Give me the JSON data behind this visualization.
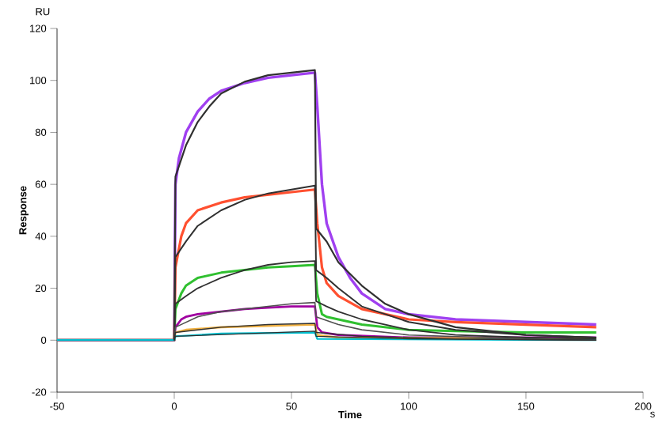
{
  "chart_data": {
    "type": "line",
    "xlabel": "Time",
    "ylabel": "Response",
    "annotations": [
      "RU",
      "s"
    ],
    "xlim": [
      -50,
      200
    ],
    "ylim": [
      -20,
      120
    ],
    "xticks": [
      -50,
      0,
      50,
      100,
      150,
      200
    ],
    "yticks": [
      -20,
      0,
      20,
      40,
      60,
      80,
      100,
      120
    ],
    "grid": false,
    "marker": "none",
    "line_style": "solid",
    "series": [
      {
        "color": "#a040f0",
        "x": [
          -50,
          0,
          0.5,
          2,
          5,
          10,
          15,
          20,
          30,
          40,
          50,
          60,
          61,
          63,
          65,
          70,
          75,
          80,
          90,
          100,
          120,
          150,
          180
        ],
        "values": [
          0,
          0,
          60,
          70,
          80,
          88,
          93,
          96,
          99,
          101,
          102,
          103,
          90,
          60,
          45,
          32,
          24,
          18,
          12,
          10,
          8,
          7,
          6
        ]
      },
      {
        "color": "#ff5030",
        "x": [
          -50,
          0,
          0.5,
          3,
          5,
          10,
          20,
          30,
          40,
          50,
          60,
          61,
          63,
          65,
          70,
          80,
          90,
          100,
          120,
          150,
          180
        ],
        "values": [
          0,
          0,
          28,
          40,
          45,
          50,
          53,
          55,
          56,
          57,
          58,
          45,
          28,
          22,
          17,
          12,
          10,
          8,
          7,
          6,
          5
        ]
      },
      {
        "color": "#30c030",
        "x": [
          -50,
          0,
          0.5,
          3,
          5,
          10,
          20,
          30,
          40,
          50,
          60,
          61,
          63,
          65,
          70,
          80,
          100,
          120,
          150,
          180
        ],
        "values": [
          0,
          0,
          12,
          18,
          21,
          24,
          26,
          27,
          28,
          28.5,
          29,
          18,
          10,
          9,
          8,
          6,
          4,
          3.5,
          3,
          3
        ]
      },
      {
        "color": "#a000a0",
        "x": [
          -50,
          0,
          0.5,
          3,
          5,
          10,
          20,
          30,
          40,
          50,
          60,
          61,
          63,
          70,
          100,
          150,
          180
        ],
        "values": [
          0,
          0,
          5,
          8,
          9,
          10,
          11,
          12,
          12.5,
          13,
          13,
          5,
          3,
          2,
          1,
          1,
          1
        ]
      },
      {
        "color": "#f0b040",
        "x": [
          -50,
          0,
          0.5,
          5,
          20,
          40,
          60,
          61,
          70,
          180
        ],
        "values": [
          0,
          0,
          3,
          4,
          5,
          5.5,
          6,
          2,
          1,
          0.5
        ]
      },
      {
        "color": "#00c0d0",
        "x": [
          -50,
          0,
          0.5,
          20,
          60,
          61,
          180
        ],
        "values": [
          0,
          0,
          1.5,
          2.5,
          3,
          0.5,
          0
        ]
      },
      {
        "color": "#303030",
        "x": [
          0,
          0.5,
          5,
          10,
          15,
          20,
          30,
          40,
          50,
          60,
          60.5,
          65,
          70,
          80,
          90,
          100,
          120,
          150,
          180
        ],
        "values": [
          0,
          63,
          75,
          84,
          90,
          95,
          99.5,
          102,
          103,
          104,
          43,
          38,
          30,
          21,
          14,
          10,
          5,
          2,
          1
        ]
      },
      {
        "color": "#303030",
        "x": [
          0,
          0.5,
          5,
          10,
          20,
          30,
          40,
          50,
          60,
          60.5,
          65,
          70,
          80,
          100,
          120,
          150,
          180
        ],
        "values": [
          0,
          32,
          38,
          44,
          50,
          54,
          56.5,
          58,
          59.5,
          27,
          24,
          20,
          13,
          7,
          4,
          2,
          1
        ]
      },
      {
        "color": "#303030",
        "x": [
          0,
          0.5,
          5,
          10,
          20,
          30,
          40,
          50,
          60,
          60.5,
          65,
          70,
          80,
          100,
          120,
          150,
          180
        ],
        "values": [
          0,
          14,
          17,
          20,
          24,
          27,
          29,
          30,
          30.5,
          15,
          13,
          11,
          8,
          4,
          2,
          1,
          0.5
        ]
      },
      {
        "color": "#505050",
        "x": [
          0,
          0.5,
          10,
          20,
          30,
          40,
          50,
          60,
          60.5,
          70,
          80,
          100,
          150,
          180
        ],
        "values": [
          0,
          5,
          9,
          11,
          12,
          13,
          14,
          14.5,
          9,
          6,
          4,
          2,
          0.5,
          0
        ]
      },
      {
        "color": "#303030",
        "x": [
          0,
          0.5,
          20,
          40,
          60,
          60.5,
          80,
          120,
          180
        ],
        "values": [
          0,
          3,
          5,
          6,
          6.5,
          3,
          1.5,
          0.5,
          0
        ]
      },
      {
        "color": "#303030",
        "x": [
          0,
          0.5,
          30,
          60,
          60.5,
          100,
          180
        ],
        "values": [
          0,
          1.5,
          2.5,
          3.5,
          1.5,
          0.5,
          0
        ]
      }
    ]
  }
}
